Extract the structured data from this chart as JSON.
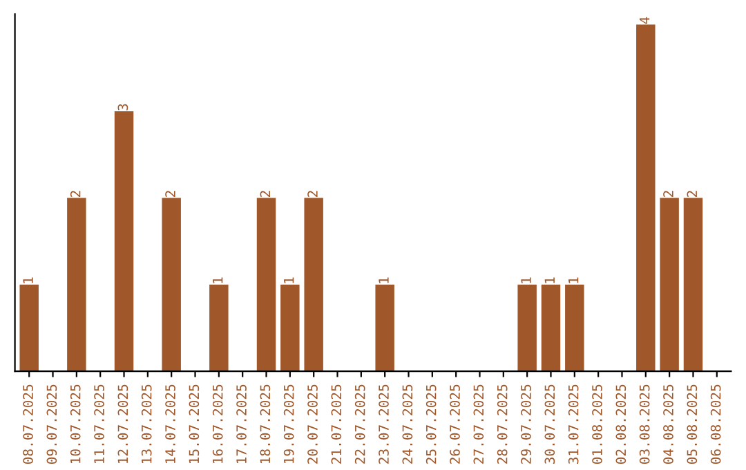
{
  "chart_data": {
    "type": "bar",
    "categories": [
      "08.07.2025",
      "09.07.2025",
      "10.07.2025",
      "11.07.2025",
      "12.07.2025",
      "13.07.2025",
      "14.07.2025",
      "15.07.2025",
      "16.07.2025",
      "17.07.2025",
      "18.07.2025",
      "19.07.2025",
      "20.07.2025",
      "21.07.2025",
      "22.07.2025",
      "23.07.2025",
      "24.07.2025",
      "25.07.2025",
      "26.07.2025",
      "27.07.2025",
      "28.07.2025",
      "29.07.2025",
      "30.07.2025",
      "31.07.2025",
      "01.08.2025",
      "02.08.2025",
      "03.08.2025",
      "04.08.2025",
      "05.08.2025",
      "06.08.2025"
    ],
    "values": [
      1,
      0,
      2,
      0,
      3,
      0,
      2,
      0,
      1,
      0,
      2,
      1,
      2,
      0,
      0,
      1,
      0,
      0,
      0,
      0,
      0,
      1,
      1,
      1,
      0,
      0,
      4,
      2,
      2,
      0
    ],
    "value_labels": [
      "1",
      null,
      "2",
      null,
      "3",
      null,
      "2",
      null,
      "1",
      null,
      "2",
      "1",
      "2",
      null,
      null,
      "1",
      null,
      null,
      null,
      null,
      null,
      "1",
      "1",
      "1",
      null,
      null,
      "4",
      "2",
      "2",
      null
    ],
    "color": "#a0572a",
    "grid": false,
    "legend": false,
    "tick_labels": "x"
  }
}
